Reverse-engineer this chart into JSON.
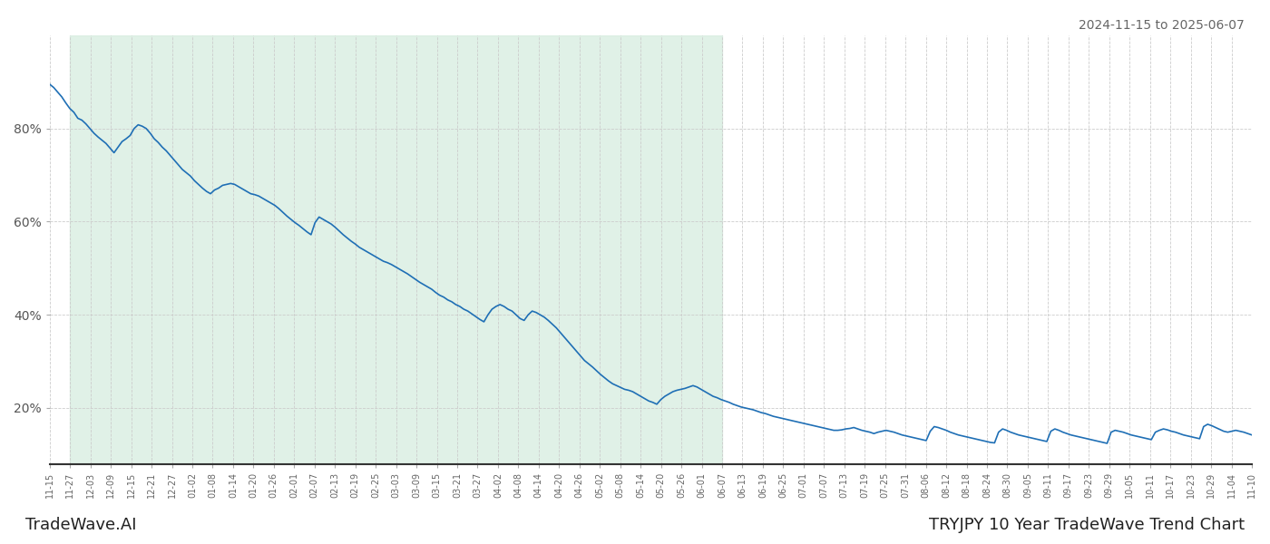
{
  "title_top_right": "2024-11-15 to 2025-06-07",
  "title_bottom_right": "TRYJPY 10 Year TradeWave Trend Chart",
  "title_bottom_left": "TradeWave.AI",
  "line_color": "#1f6fb5",
  "line_width": 1.2,
  "bg_color": "#ffffff",
  "shade_color": "#d6ede0",
  "shade_alpha": 0.75,
  "grid_color": "#cccccc",
  "ylim": [
    0.08,
    1.0
  ],
  "yticks": [
    0.2,
    0.4,
    0.6,
    0.8
  ],
  "shade_start_label": "11-27",
  "shade_end_label": "06-07",
  "x_labels": [
    "11-15",
    "11-27",
    "12-03",
    "12-09",
    "12-15",
    "12-21",
    "12-27",
    "01-02",
    "01-08",
    "01-14",
    "01-20",
    "01-26",
    "02-01",
    "02-07",
    "02-13",
    "02-19",
    "02-25",
    "03-03",
    "03-09",
    "03-15",
    "03-21",
    "03-27",
    "04-02",
    "04-08",
    "04-14",
    "04-20",
    "04-26",
    "05-02",
    "05-08",
    "05-14",
    "05-20",
    "05-26",
    "06-01",
    "06-07",
    "06-13",
    "06-19",
    "06-25",
    "07-01",
    "07-07",
    "07-13",
    "07-19",
    "07-25",
    "07-31",
    "08-06",
    "08-12",
    "08-18",
    "08-24",
    "08-30",
    "09-05",
    "09-11",
    "09-17",
    "09-23",
    "09-29",
    "10-05",
    "10-11",
    "10-17",
    "10-23",
    "10-29",
    "11-04",
    "11-10"
  ],
  "values": [
    0.895,
    0.888,
    0.878,
    0.868,
    0.855,
    0.843,
    0.835,
    0.822,
    0.818,
    0.81,
    0.8,
    0.79,
    0.782,
    0.775,
    0.768,
    0.758,
    0.748,
    0.76,
    0.772,
    0.778,
    0.785,
    0.8,
    0.808,
    0.805,
    0.8,
    0.79,
    0.778,
    0.77,
    0.76,
    0.752,
    0.742,
    0.732,
    0.722,
    0.712,
    0.705,
    0.698,
    0.688,
    0.68,
    0.672,
    0.665,
    0.66,
    0.668,
    0.672,
    0.678,
    0.68,
    0.682,
    0.68,
    0.675,
    0.67,
    0.665,
    0.66,
    0.658,
    0.655,
    0.65,
    0.645,
    0.64,
    0.635,
    0.628,
    0.62,
    0.612,
    0.605,
    0.598,
    0.592,
    0.585,
    0.578,
    0.572,
    0.598,
    0.61,
    0.605,
    0.6,
    0.595,
    0.588,
    0.58,
    0.572,
    0.565,
    0.558,
    0.552,
    0.545,
    0.54,
    0.535,
    0.53,
    0.525,
    0.52,
    0.515,
    0.512,
    0.508,
    0.503,
    0.498,
    0.493,
    0.488,
    0.482,
    0.476,
    0.47,
    0.465,
    0.46,
    0.455,
    0.448,
    0.442,
    0.438,
    0.432,
    0.428,
    0.422,
    0.418,
    0.412,
    0.408,
    0.402,
    0.396,
    0.39,
    0.385,
    0.4,
    0.412,
    0.418,
    0.422,
    0.418,
    0.412,
    0.408,
    0.4,
    0.392,
    0.388,
    0.4,
    0.408,
    0.405,
    0.4,
    0.395,
    0.388,
    0.38,
    0.372,
    0.362,
    0.352,
    0.342,
    0.332,
    0.322,
    0.312,
    0.302,
    0.295,
    0.288,
    0.28,
    0.272,
    0.265,
    0.258,
    0.252,
    0.248,
    0.244,
    0.24,
    0.238,
    0.235,
    0.23,
    0.225,
    0.22,
    0.215,
    0.212,
    0.208,
    0.218,
    0.225,
    0.23,
    0.235,
    0.238,
    0.24,
    0.242,
    0.245,
    0.248,
    0.245,
    0.24,
    0.235,
    0.23,
    0.225,
    0.222,
    0.218,
    0.215,
    0.212,
    0.208,
    0.205,
    0.202,
    0.2,
    0.198,
    0.196,
    0.193,
    0.19,
    0.188,
    0.185,
    0.182,
    0.18,
    0.178,
    0.176,
    0.174,
    0.172,
    0.17,
    0.168,
    0.166,
    0.164,
    0.162,
    0.16,
    0.158,
    0.156,
    0.154,
    0.152,
    0.152,
    0.153,
    0.155,
    0.156,
    0.158,
    0.155,
    0.152,
    0.15,
    0.148,
    0.145,
    0.148,
    0.15,
    0.152,
    0.15,
    0.148,
    0.145,
    0.142,
    0.14,
    0.138,
    0.136,
    0.134,
    0.132,
    0.13,
    0.15,
    0.16,
    0.158,
    0.155,
    0.152,
    0.148,
    0.145,
    0.142,
    0.14,
    0.138,
    0.136,
    0.134,
    0.132,
    0.13,
    0.128,
    0.126,
    0.125,
    0.148,
    0.155,
    0.152,
    0.148,
    0.145,
    0.142,
    0.14,
    0.138,
    0.136,
    0.134,
    0.132,
    0.13,
    0.128,
    0.15,
    0.155,
    0.152,
    0.148,
    0.145,
    0.142,
    0.14,
    0.138,
    0.136,
    0.134,
    0.132,
    0.13,
    0.128,
    0.126,
    0.124,
    0.148,
    0.152,
    0.15,
    0.148,
    0.145,
    0.142,
    0.14,
    0.138,
    0.136,
    0.134,
    0.132,
    0.148,
    0.152,
    0.155,
    0.153,
    0.15,
    0.148,
    0.145,
    0.142,
    0.14,
    0.138,
    0.136,
    0.134,
    0.16,
    0.165,
    0.162,
    0.158,
    0.154,
    0.15,
    0.148,
    0.15,
    0.152,
    0.15,
    0.148,
    0.145,
    0.142
  ]
}
